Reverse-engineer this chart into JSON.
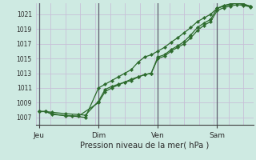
{
  "background_color": "#ceeae2",
  "grid_color": "#c8c0d8",
  "line_color": "#2d6b2d",
  "marker_color": "#2d6b2d",
  "xlabel": "Pression niveau de la mer( hPa )",
  "ylim": [
    1006.0,
    1022.5
  ],
  "yticks": [
    1007,
    1009,
    1011,
    1013,
    1015,
    1017,
    1019,
    1021
  ],
  "xtick_labels": [
    "Jeu",
    "Dim",
    "Ven",
    "Sam"
  ],
  "xtick_positions": [
    0,
    36,
    72,
    108
  ],
  "vline_positions": [
    0,
    36,
    72,
    108
  ],
  "xlim": [
    -2,
    130
  ],
  "series1_x": [
    0,
    4,
    8,
    16,
    24,
    28,
    36,
    40,
    44,
    48,
    52,
    56,
    60,
    64,
    68,
    72,
    76,
    80,
    84,
    88,
    92,
    96,
    100,
    104,
    108,
    112,
    116,
    120,
    124,
    128
  ],
  "series1_y": [
    1007.8,
    1007.8,
    1007.7,
    1007.5,
    1007.4,
    1007.3,
    1009.2,
    1010.8,
    1011.2,
    1011.5,
    1011.8,
    1012.2,
    1012.5,
    1012.8,
    1013.0,
    1015.2,
    1015.5,
    1016.2,
    1016.7,
    1017.3,
    1018.2,
    1019.2,
    1019.8,
    1020.3,
    1021.8,
    1022.1,
    1022.3,
    1022.5,
    1022.4,
    1022.1
  ],
  "series2_x": [
    0,
    4,
    8,
    16,
    24,
    36,
    40,
    44,
    48,
    52,
    56,
    60,
    64,
    68,
    72,
    76,
    80,
    84,
    88,
    92,
    96,
    100,
    104,
    108,
    112,
    116,
    120,
    124,
    128
  ],
  "series2_y": [
    1007.8,
    1007.8,
    1007.5,
    1007.2,
    1007.2,
    1009.0,
    1010.5,
    1011.0,
    1011.4,
    1011.8,
    1012.0,
    1012.5,
    1012.8,
    1013.0,
    1015.0,
    1015.3,
    1016.0,
    1016.5,
    1017.0,
    1017.8,
    1018.8,
    1019.5,
    1020.0,
    1021.5,
    1021.9,
    1022.1,
    1022.3,
    1022.2,
    1022.0
  ],
  "series3_x": [
    0,
    4,
    8,
    20,
    28,
    36,
    40,
    44,
    48,
    52,
    56,
    60,
    64,
    68,
    72,
    76,
    80,
    84,
    88,
    92,
    96,
    100,
    104,
    108,
    112,
    116,
    120,
    124,
    128
  ],
  "series3_y": [
    1007.8,
    1007.8,
    1007.4,
    1007.2,
    1007.0,
    1011.0,
    1011.5,
    1012.0,
    1012.5,
    1013.0,
    1013.5,
    1014.5,
    1015.2,
    1015.5,
    1016.0,
    1016.5,
    1017.2,
    1017.8,
    1018.5,
    1019.2,
    1020.0,
    1020.5,
    1021.0,
    1021.8,
    1022.2,
    1022.4,
    1022.5,
    1022.3,
    1022.1
  ]
}
